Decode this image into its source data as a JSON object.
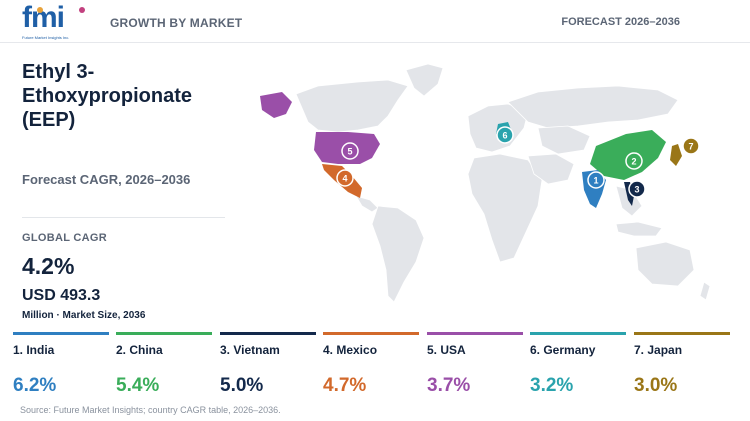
{
  "header": {
    "logo_text": "fmi",
    "logo_subtext": "Future Market Insights Inc.",
    "left_label": "GROWTH BY MARKET",
    "right_label": "FORECAST 2026–2036"
  },
  "title": "Ethyl 3-Ethoxypropionate (EEP)",
  "subtitle": "Forecast CAGR, 2026–2036",
  "global": {
    "label": "GLOBAL CAGR",
    "value": "4.2%",
    "market_size": "USD 493.3",
    "market_unit": "Million · Market Size, 2036"
  },
  "map": {
    "base_color": "#e3e5e9",
    "markers": [
      {
        "rank": "1",
        "country": "India"
      },
      {
        "rank": "2",
        "country": "China"
      },
      {
        "rank": "3",
        "country": "Vietnam"
      },
      {
        "rank": "4",
        "country": "Mexico"
      },
      {
        "rank": "5",
        "country": "USA"
      },
      {
        "rank": "6",
        "country": "Germany"
      },
      {
        "rank": "7",
        "country": "Japan"
      }
    ]
  },
  "countries": [
    {
      "label": "1. India",
      "value": "6.2%",
      "color": "#2f7fc1"
    },
    {
      "label": "2. China",
      "value": "5.4%",
      "color": "#3aad5a"
    },
    {
      "label": "3. Vietnam",
      "value": "5.0%",
      "color": "#13294b"
    },
    {
      "label": "4. Mexico",
      "value": "4.7%",
      "color": "#d2692b"
    },
    {
      "label": "5. USA",
      "value": "3.7%",
      "color": "#9a4fa8"
    },
    {
      "label": "6. Germany",
      "value": "3.2%",
      "color": "#2aa3ad"
    },
    {
      "label": "7. Japan",
      "value": "3.0%",
      "color": "#9a7617"
    }
  ],
  "source": "Source: Future Market Insights; country CAGR table, 2026–2036."
}
